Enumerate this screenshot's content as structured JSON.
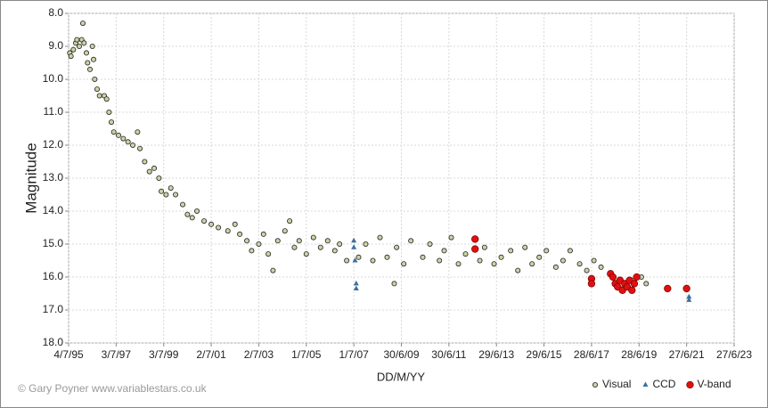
{
  "chart_data": {
    "type": "scatter",
    "x_label": "DD/M/YY",
    "y_label": "Magnitude",
    "credit": "© Gary Poyner  www.variablestars.co.uk",
    "xlim": [
      1995.5,
      2023.5
    ],
    "ylim": [
      8,
      18
    ],
    "y_inverted": true,
    "grid": true,
    "legend": "lower right",
    "xticks": [
      {
        "value": 1995.5,
        "label": "4/7/95"
      },
      {
        "value": 1997.5,
        "label": "3/7/97"
      },
      {
        "value": 1999.5,
        "label": "3/7/99"
      },
      {
        "value": 2001.5,
        "label": "2/7/01"
      },
      {
        "value": 2003.5,
        "label": "2/7/03"
      },
      {
        "value": 2005.5,
        "label": "1/7/05"
      },
      {
        "value": 2007.5,
        "label": "1/7/07"
      },
      {
        "value": 2009.5,
        "label": "30/6/09"
      },
      {
        "value": 2011.5,
        "label": "30/6/11"
      },
      {
        "value": 2013.5,
        "label": "29/6/13"
      },
      {
        "value": 2015.5,
        "label": "29/6/15"
      },
      {
        "value": 2017.5,
        "label": "28/6/17"
      },
      {
        "value": 2019.5,
        "label": "28/6/19"
      },
      {
        "value": 2021.5,
        "label": "27/6/21"
      },
      {
        "value": 2023.5,
        "label": "27/6/23"
      }
    ],
    "yticks": [
      {
        "value": 8,
        "label": "8.0"
      },
      {
        "value": 9,
        "label": "9.0"
      },
      {
        "value": 10,
        "label": "10.0"
      },
      {
        "value": 11,
        "label": "11.0"
      },
      {
        "value": 12,
        "label": "12.0"
      },
      {
        "value": 13,
        "label": "13.0"
      },
      {
        "value": 14,
        "label": "14.0"
      },
      {
        "value": 15,
        "label": "15.0"
      },
      {
        "value": 16,
        "label": "16.0"
      },
      {
        "value": 17,
        "label": "17.0"
      },
      {
        "value": 18,
        "label": "18.0"
      }
    ],
    "series": [
      {
        "name": "Visual",
        "color": "#c9d3a6",
        "marker": "circle",
        "x": [
          1995.55,
          1995.6,
          1995.7,
          1995.8,
          1995.85,
          1995.95,
          1996.05,
          1996.1,
          1996.15,
          1996.25,
          1996.3,
          1996.4,
          1996.5,
          1996.55,
          1996.6,
          1996.7,
          1996.8,
          1997.0,
          1997.1,
          1997.2,
          1997.3,
          1997.4,
          1997.6,
          1997.8,
          1998.0,
          1998.2,
          1998.4,
          1998.5,
          1998.7,
          1998.9,
          1999.1,
          1999.3,
          1999.4,
          1999.6,
          1999.8,
          2000.0,
          2000.3,
          2000.5,
          2000.7,
          2000.9,
          2001.2,
          2001.5,
          2001.8,
          2002.2,
          2002.5,
          2002.7,
          2003.0,
          2003.2,
          2003.5,
          2003.7,
          2003.9,
          2004.1,
          2004.3,
          2004.6,
          2004.8,
          2005.0,
          2005.2,
          2005.5,
          2005.8,
          2006.1,
          2006.4,
          2006.7,
          2006.9,
          2007.2,
          2007.7,
          2008.0,
          2008.3,
          2008.6,
          2008.9,
          2009.2,
          2009.3,
          2009.6,
          2009.9,
          2010.4,
          2010.7,
          2011.1,
          2011.3,
          2011.6,
          2011.9,
          2012.2,
          2012.8,
          2013.0,
          2013.4,
          2013.7,
          2014.1,
          2014.4,
          2014.7,
          2015.0,
          2015.3,
          2015.6,
          2016.0,
          2016.3,
          2016.6,
          2017.0,
          2017.3,
          2017.6,
          2017.9,
          2018.3,
          2019.3,
          2019.6,
          2019.8
        ],
        "values": [
          9.2,
          9.3,
          9.1,
          8.9,
          8.8,
          9.0,
          8.8,
          8.3,
          8.9,
          9.2,
          9.5,
          9.7,
          9.0,
          9.4,
          10.0,
          10.3,
          10.5,
          10.5,
          10.6,
          11.0,
          11.3,
          11.6,
          11.7,
          11.8,
          11.9,
          12.0,
          11.6,
          12.1,
          12.5,
          12.8,
          12.7,
          13.0,
          13.4,
          13.5,
          13.3,
          13.5,
          13.8,
          14.1,
          14.2,
          14.0,
          14.3,
          14.4,
          14.5,
          14.6,
          14.4,
          14.7,
          14.9,
          15.2,
          15.0,
          14.7,
          15.3,
          15.8,
          14.9,
          14.6,
          14.3,
          15.1,
          14.9,
          15.3,
          14.8,
          15.1,
          14.9,
          15.2,
          15.0,
          15.5,
          15.4,
          15.0,
          15.5,
          14.8,
          15.4,
          16.2,
          15.1,
          15.6,
          14.9,
          15.4,
          15.0,
          15.5,
          15.2,
          14.8,
          15.6,
          15.3,
          15.5,
          15.1,
          15.6,
          15.4,
          15.2,
          15.8,
          15.1,
          15.6,
          15.4,
          15.2,
          15.7,
          15.5,
          15.2,
          15.6,
          15.8,
          15.5,
          15.7,
          15.9,
          16.1,
          16.0,
          16.2
        ]
      },
      {
        "name": "CCD",
        "color": "#3d6f9e",
        "marker": "triangle",
        "x": [
          2007.5,
          2007.5,
          2007.55,
          2007.6,
          2007.6,
          2021.6,
          2021.6
        ],
        "values": [
          14.9,
          15.1,
          15.5,
          16.2,
          16.35,
          16.6,
          16.7
        ]
      },
      {
        "name": "V-band",
        "color": "#e01010",
        "marker": "dot",
        "x": [
          2012.6,
          2012.6,
          2017.5,
          2017.5,
          2018.3,
          2018.4,
          2018.5,
          2018.6,
          2018.7,
          2018.8,
          2018.9,
          2019.0,
          2019.1,
          2019.2,
          2019.3,
          2019.4,
          2020.7,
          2021.5
        ],
        "values": [
          14.85,
          15.15,
          16.05,
          16.2,
          15.9,
          16.0,
          16.2,
          16.3,
          16.1,
          16.4,
          16.2,
          16.3,
          16.1,
          16.4,
          16.2,
          16.0,
          16.35,
          16.35
        ]
      }
    ]
  }
}
